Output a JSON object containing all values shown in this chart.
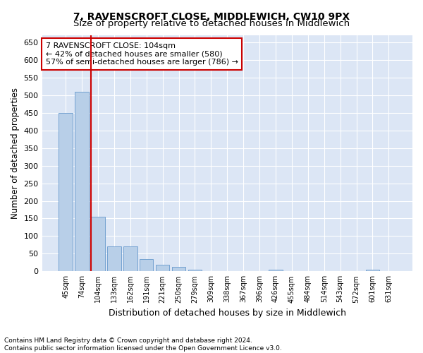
{
  "title": "7, RAVENSCROFT CLOSE, MIDDLEWICH, CW10 9PX",
  "subtitle": "Size of property relative to detached houses in Middlewich",
  "xlabel": "Distribution of detached houses by size in Middlewich",
  "ylabel": "Number of detached properties",
  "categories": [
    "45sqm",
    "74sqm",
    "104sqm",
    "133sqm",
    "162sqm",
    "191sqm",
    "221sqm",
    "250sqm",
    "279sqm",
    "309sqm",
    "338sqm",
    "367sqm",
    "396sqm",
    "426sqm",
    "455sqm",
    "484sqm",
    "514sqm",
    "543sqm",
    "572sqm",
    "601sqm",
    "631sqm"
  ],
  "values": [
    450,
    510,
    155,
    70,
    70,
    35,
    18,
    12,
    5,
    0,
    0,
    0,
    0,
    5,
    0,
    0,
    0,
    0,
    0,
    5,
    0
  ],
  "bar_color": "#b8cfe8",
  "bar_edge_color": "#6699cc",
  "highlight_line_color": "#cc0000",
  "annotation_text": "7 RAVENSCROFT CLOSE: 104sqm\n← 42% of detached houses are smaller (580)\n57% of semi-detached houses are larger (786) →",
  "annotation_box_color": "#cc0000",
  "ylim": [
    0,
    670
  ],
  "yticks": [
    0,
    50,
    100,
    150,
    200,
    250,
    300,
    350,
    400,
    450,
    500,
    550,
    600,
    650
  ],
  "background_color": "#dce6f5",
  "footer_line1": "Contains HM Land Registry data © Crown copyright and database right 2024.",
  "footer_line2": "Contains public sector information licensed under the Open Government Licence v3.0.",
  "title_fontsize": 10,
  "subtitle_fontsize": 9.5
}
